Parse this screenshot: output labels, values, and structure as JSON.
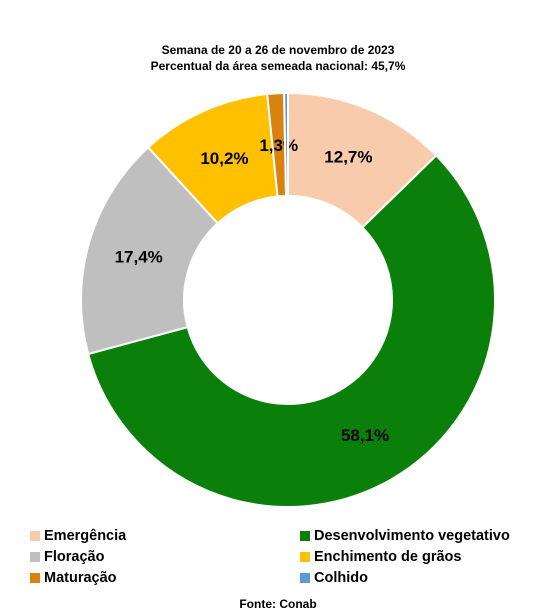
{
  "chart_data": {
    "type": "pie",
    "donut": true,
    "title": "Semana de 20 a 26 de novembro de 2023",
    "subtitle": "Percentual da área semeada nacional: 45,7%",
    "slices": [
      {
        "name": "Emergência",
        "value": 12.7,
        "label": "12,7%",
        "color": "#f8cbad"
      },
      {
        "name": "Desenvolvimento vegetativo",
        "value": 58.1,
        "label": "58,1%",
        "color": "#0a800a"
      },
      {
        "name": "Floração",
        "value": 17.4,
        "label": "17,4%",
        "color": "#bfbfbf"
      },
      {
        "name": "Enchimento de grãos",
        "value": 10.2,
        "label": "10,2%",
        "color": "#ffc000"
      },
      {
        "name": "Maturação",
        "value": 1.3,
        "label": "1,3%",
        "color": "#d9820f"
      },
      {
        "name": "Colhido",
        "value": 0.3,
        "label": "",
        "color": "#5b9bd5"
      }
    ],
    "legend": [
      {
        "label": "Emergência",
        "color": "#f8cbad"
      },
      {
        "label": "Desenvolvimento vegetativo",
        "color": "#0a800a"
      },
      {
        "label": "Floração",
        "color": "#bfbfbf"
      },
      {
        "label": "Enchimento de grãos",
        "color": "#ffc000"
      },
      {
        "label": "Maturação",
        "color": "#d9820f"
      },
      {
        "label": "Colhido",
        "color": "#5b9bd5"
      }
    ],
    "legend_position": "bottom",
    "source": "Fonte: Conab"
  }
}
